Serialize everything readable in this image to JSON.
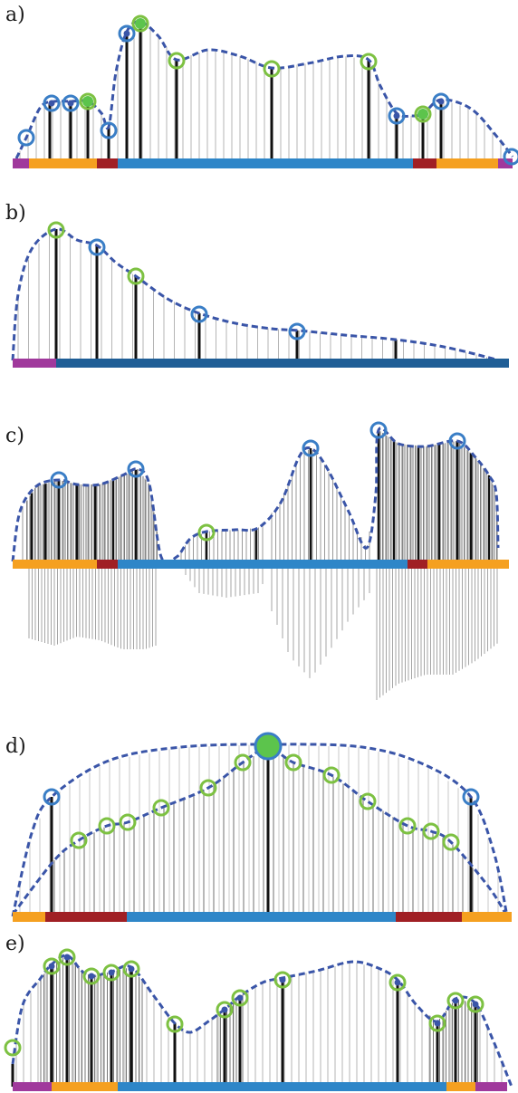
{
  "panels": [
    {
      "label": "a)",
      "colors": {
        "purple": "#a0399c",
        "orange": "#f5a020",
        "darkred": "#a01f24",
        "blue": "#2e86c8",
        "navy": "#1f5e96",
        "curve": "#3a55a8",
        "green": "#5cc44c",
        "ring_blue": "#3a7ec6",
        "ring_green": "#7dc142"
      }
    },
    {
      "label": "b)"
    },
    {
      "label": "c)"
    },
    {
      "label": "d)"
    },
    {
      "label": "e)"
    }
  ]
}
